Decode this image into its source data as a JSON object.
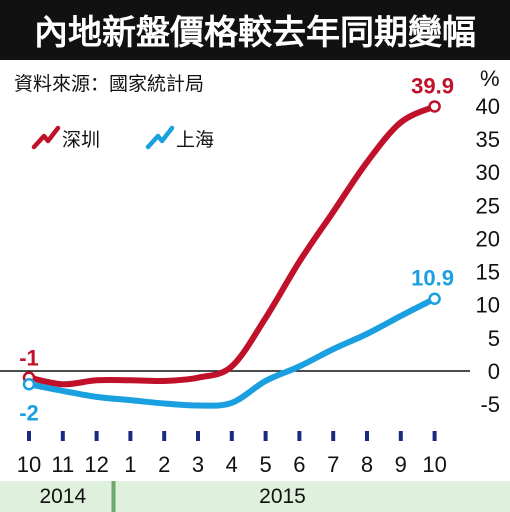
{
  "chart_data": {
    "type": "line",
    "title": "內地新盤價格較去年同期變幅",
    "source": "資料來源：國家統計局",
    "ylabel": "%",
    "ylim": [
      -5,
      40
    ],
    "yticks": [
      -5,
      0,
      5,
      10,
      15,
      20,
      25,
      30,
      35,
      40
    ],
    "categories": [
      "10",
      "11",
      "12",
      "1",
      "2",
      "3",
      "4",
      "5",
      "6",
      "7",
      "8",
      "9",
      "10"
    ],
    "years": [
      {
        "label": "2014",
        "from": 0,
        "to": 2
      },
      {
        "label": "2015",
        "from": 3,
        "to": 12
      }
    ],
    "legend_position": "top-left",
    "series": [
      {
        "name": "深圳",
        "color": "#c0102a",
        "values": [
          -1,
          -2,
          -1.4,
          -1.4,
          -1.5,
          -1,
          0.7,
          8,
          16.5,
          24,
          31.5,
          37.5,
          39.9
        ],
        "start_label": "-1",
        "end_label": "39.9"
      },
      {
        "name": "上海",
        "color": "#1aa0e0",
        "values": [
          -2,
          -3,
          -3.9,
          -4.4,
          -4.9,
          -5.2,
          -4.8,
          -1.5,
          0.7,
          3.3,
          5.6,
          8.3,
          10.9
        ],
        "start_label": "-2",
        "end_label": "10.9"
      }
    ],
    "colors": {
      "title_bg": "#111111",
      "title_fg": "#ffffff",
      "axis": "#111111",
      "month_tick": "#1a2a80",
      "year_band": "#dff0dc",
      "year_divider": "#6aaa6a"
    }
  }
}
